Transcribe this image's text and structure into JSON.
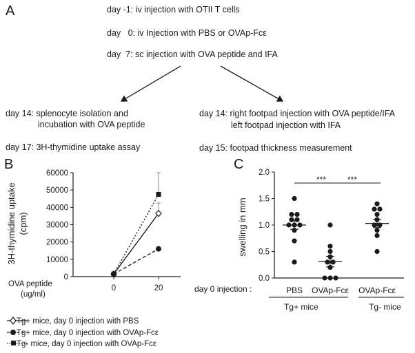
{
  "panel_a": {
    "letter": "A",
    "protocol": [
      "day -1: iv injection with OTII T cells",
      "day   0: iv Injection with PBS or OVAp-Fcε",
      "day  7: sc injection with OVA peptide and IFA"
    ],
    "left_branch": [
      "day 14:  splenocyte isolation and",
      "incubation with OVA peptide",
      "day 17:  3H-thymidine uptake assay"
    ],
    "right_branch": [
      "day 14: right footpad injection with OVA peptide/IFA",
      "left footpad injection with IFA",
      "day 15: footpad thickness measurement"
    ]
  },
  "panel_b": {
    "letter": "B",
    "xlabel_line1": "OVA peptide",
    "xlabel_line2": "(ug/ml)",
    "legend": [
      "Tg+ mice, day 0 injection with PBS",
      "Tg+ mice, day 0 injection with OVAp-Fcε",
      "Tg- mice, day 0 injection with OVAp-Fcε"
    ]
  },
  "panel_c": {
    "letter": "C",
    "group_row_label": "day 0 injection :",
    "groups": [
      "PBS",
      "OVAp-Fcε",
      "OVAp-Fcε"
    ],
    "mice_groups": [
      "Tg+ mice",
      "Tg- mice"
    ],
    "significance": [
      "***",
      "***"
    ]
  },
  "chart_data": [
    {
      "type": "line",
      "ylabel_line1": "3H-thymidine uptake",
      "ylabel_line2": "(cpm)",
      "categories": [
        "0",
        "20"
      ],
      "ylim": [
        0,
        60000
      ],
      "yticks": [
        0,
        10000,
        20000,
        30000,
        40000,
        50000,
        60000
      ],
      "yticklabels": [
        "0",
        "10000",
        "20000",
        "30000",
        "40000",
        "50000",
        "60000"
      ],
      "series": [
        {
          "name": "Tg+ mice, day 0 injection with PBS",
          "values": [
            1500,
            36500
          ],
          "errors": [
            0,
            6000
          ],
          "marker": "open-diamond",
          "line": "solid"
        },
        {
          "name": "Tg+ mice, day 0 injection with OVAp-Fcε",
          "values": [
            1500,
            16000
          ],
          "errors": [
            0,
            0
          ],
          "marker": "filled-circle",
          "line": "dashed"
        },
        {
          "name": "Tg- mice, day 0 injection with OVAp-Fcε",
          "values": [
            1500,
            47500
          ],
          "errors": [
            0,
            12500
          ],
          "marker": "filled-square",
          "line": "dotted"
        }
      ]
    },
    {
      "type": "scatter",
      "ylabel": "swelling in mm",
      "ylim": [
        0,
        2.0
      ],
      "yticks": [
        0.0,
        0.5,
        1.0,
        1.5,
        2.0
      ],
      "yticklabels": [
        "0.0",
        "0.5",
        "1.0",
        "1.5",
        "2.0"
      ],
      "groups": [
        {
          "label": "PBS",
          "mean": 1.0,
          "sem": 0.08,
          "points": [
            1.5,
            1.2,
            1.2,
            1.1,
            1.1,
            1.0,
            1.0,
            1.0,
            0.9,
            0.7,
            0.3
          ]
        },
        {
          "label": "OVAp-Fcε",
          "mean": 0.31,
          "sem": 0.1,
          "points": [
            1.0,
            0.6,
            0.5,
            0.4,
            0.3,
            0.3,
            0.2,
            0.0,
            0.0,
            0.0
          ]
        },
        {
          "label": "OVAp-Fcε",
          "mean": 1.03,
          "sem": 0.08,
          "points": [
            1.4,
            1.3,
            1.3,
            1.2,
            1.1,
            1.0,
            1.0,
            0.9,
            0.8,
            0.5
          ]
        }
      ]
    }
  ]
}
